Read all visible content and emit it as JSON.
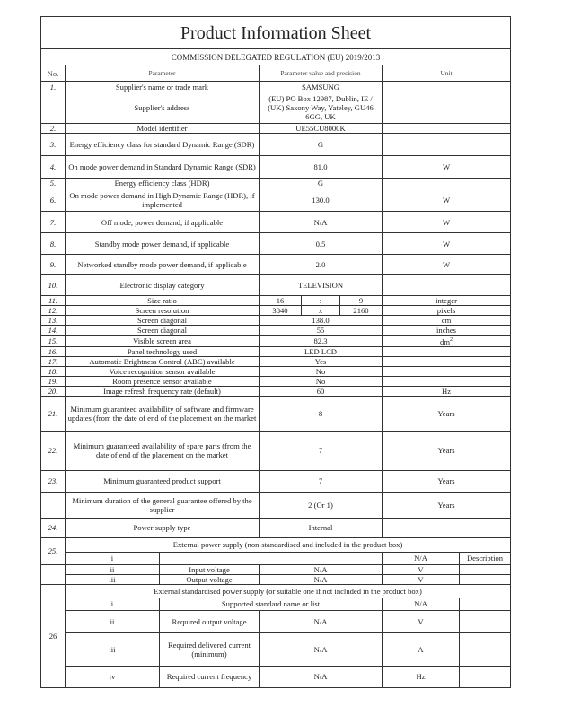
{
  "title": "Product Information Sheet",
  "regulation": "COMMISSION DELEGATED REGULATION (EU) 2019/2013",
  "headers": {
    "no": "No.",
    "parameter": "Parameter",
    "value": "Parameter value and precision",
    "unit": "Unit"
  },
  "rows": [
    {
      "no": "1.",
      "parameter": "Supplier's name or trade mark",
      "value": "SAMSUNG",
      "unit": "",
      "h": 12
    },
    {
      "no": "",
      "parameter": "Supplier's address",
      "value": "(EU) PO Box 12987, Dublin, IE / (UK) Saxony Way, Yateley, GU46 6GG, UK",
      "unit": "",
      "h": 35
    },
    {
      "no": "2.",
      "parameter": "Model identifier",
      "value": "UE55CU8000K",
      "unit": "",
      "h": 11
    },
    {
      "no": "3.",
      "parameter": "Energy efficiency class for standard Dynamic Range (SDR)",
      "value": "G",
      "unit": "",
      "h": 25
    },
    {
      "no": "4.",
      "parameter": "On mode power demand in Standard Dynamic Range (SDR)",
      "value": "81.0",
      "unit": "W",
      "h": 25
    },
    {
      "no": "5.",
      "parameter": "Energy efficiency class (HDR)",
      "value": "G",
      "unit": "",
      "h": 11
    },
    {
      "no": "6.",
      "parameter": "On mode power demand in High Dynamic Range (HDR), if implemented",
      "value": "130.0",
      "unit": "W",
      "h": 26
    },
    {
      "no": "7.",
      "parameter": "Off mode, power demand, if applicable",
      "value": "N/A",
      "unit": "W",
      "h": 24
    },
    {
      "no": "8.",
      "parameter": "Standby mode power demand, if applicable",
      "value": "0.5",
      "unit": "W",
      "h": 24
    },
    {
      "no": "9.",
      "parameter": "Networked standby mode power demand, if applicable",
      "value": "2.0",
      "unit": "W",
      "h": 22
    },
    {
      "no": "10.",
      "parameter": "Electronic display category",
      "value": "TELEVISION",
      "unit": "",
      "h": 24
    },
    {
      "no": "11.",
      "parameter": "Size ratio",
      "split": [
        "16",
        ":",
        "9"
      ],
      "unit": "integer",
      "h": 11
    },
    {
      "no": "12.",
      "parameter": "Screen resolution",
      "split": [
        "3840",
        "x",
        "2160"
      ],
      "unit": "pixels",
      "h": 11
    },
    {
      "no": "13.",
      "parameter": "Screen diagonal",
      "value": "138.0",
      "unit": "cm",
      "h": 10.6
    },
    {
      "no": "14.",
      "parameter": "Screen diagonal",
      "value": "55",
      "unit": "inches",
      "h": 10.6
    },
    {
      "no": "15.",
      "parameter": "Visible screen area",
      "value": "82.3",
      "unit": "dm",
      "unit_sup": "2",
      "h": 10.6
    },
    {
      "no": "16.",
      "parameter": "Panel technology used",
      "value": "LED LCD",
      "unit": "",
      "h": 10.6
    },
    {
      "no": "17.",
      "parameter": "Automatic Brightness Control (ABC) available",
      "value": "Yes",
      "unit": "",
      "h": 10.6
    },
    {
      "no": "18.",
      "parameter": "Voice recognition sensor available",
      "value": "No",
      "unit": "",
      "h": 10.6
    },
    {
      "no": "19.",
      "parameter": "Room presence sensor available",
      "value": "No",
      "unit": "",
      "h": 10.6
    },
    {
      "no": "20.",
      "parameter": "Image refresh frequency rate (default)",
      "value": "60",
      "unit": "Hz",
      "h": 10.6
    },
    {
      "no": "21.",
      "parameter": "Minimum guaranteed availability of software and firmware updates (from the date of end of the placement on the market",
      "value": "8",
      "unit": "Years",
      "h": 39
    },
    {
      "no": "22.",
      "parameter": "Minimum guaranteed availability of spare parts (from the date of end of the placement on the market",
      "value": "7",
      "unit": "Years",
      "h": 44
    },
    {
      "no": "23.",
      "parameter": "Minimum guaranteed product support",
      "value": "7",
      "unit": "Years",
      "h": 24
    },
    {
      "no": "",
      "parameter": "Minimum duration of the general guarantee offered by the supplier",
      "value": "2 (Or 1)",
      "unit": "Years",
      "h": 29
    },
    {
      "no": "24.",
      "parameter": "Power supply type",
      "value": "Internal",
      "unit": "",
      "h": 22
    }
  ],
  "section25": {
    "no": "25.",
    "title": "External power supply (non-standardised and included in the product box)",
    "rows": [
      {
        "idx": "i",
        "label": "",
        "value": "",
        "unit": "N/A",
        "desc": "Description"
      },
      {
        "idx": "ii",
        "label": "Input voltage",
        "value": "N/A",
        "unit": "V",
        "desc": ""
      },
      {
        "idx": "iii",
        "label": "Output voltage",
        "value": "N/A",
        "unit": "V",
        "desc": ""
      }
    ]
  },
  "section26": {
    "no": "26",
    "title": "External standardised power supply (or suitable one if not included in the product box)",
    "rows": [
      {
        "idx": "i",
        "label": "Supported standard name or list",
        "unit": "N/A"
      },
      {
        "idx": "ii",
        "label": "Required output voltage",
        "value": "N/A",
        "unit": "V"
      },
      {
        "idx": "iii",
        "label": "Required delivered current (minimum)",
        "value": "N/A",
        "unit": "A"
      },
      {
        "idx": "iv",
        "label": "Required current frequency",
        "value": "N/A",
        "unit": "Hz"
      }
    ]
  }
}
